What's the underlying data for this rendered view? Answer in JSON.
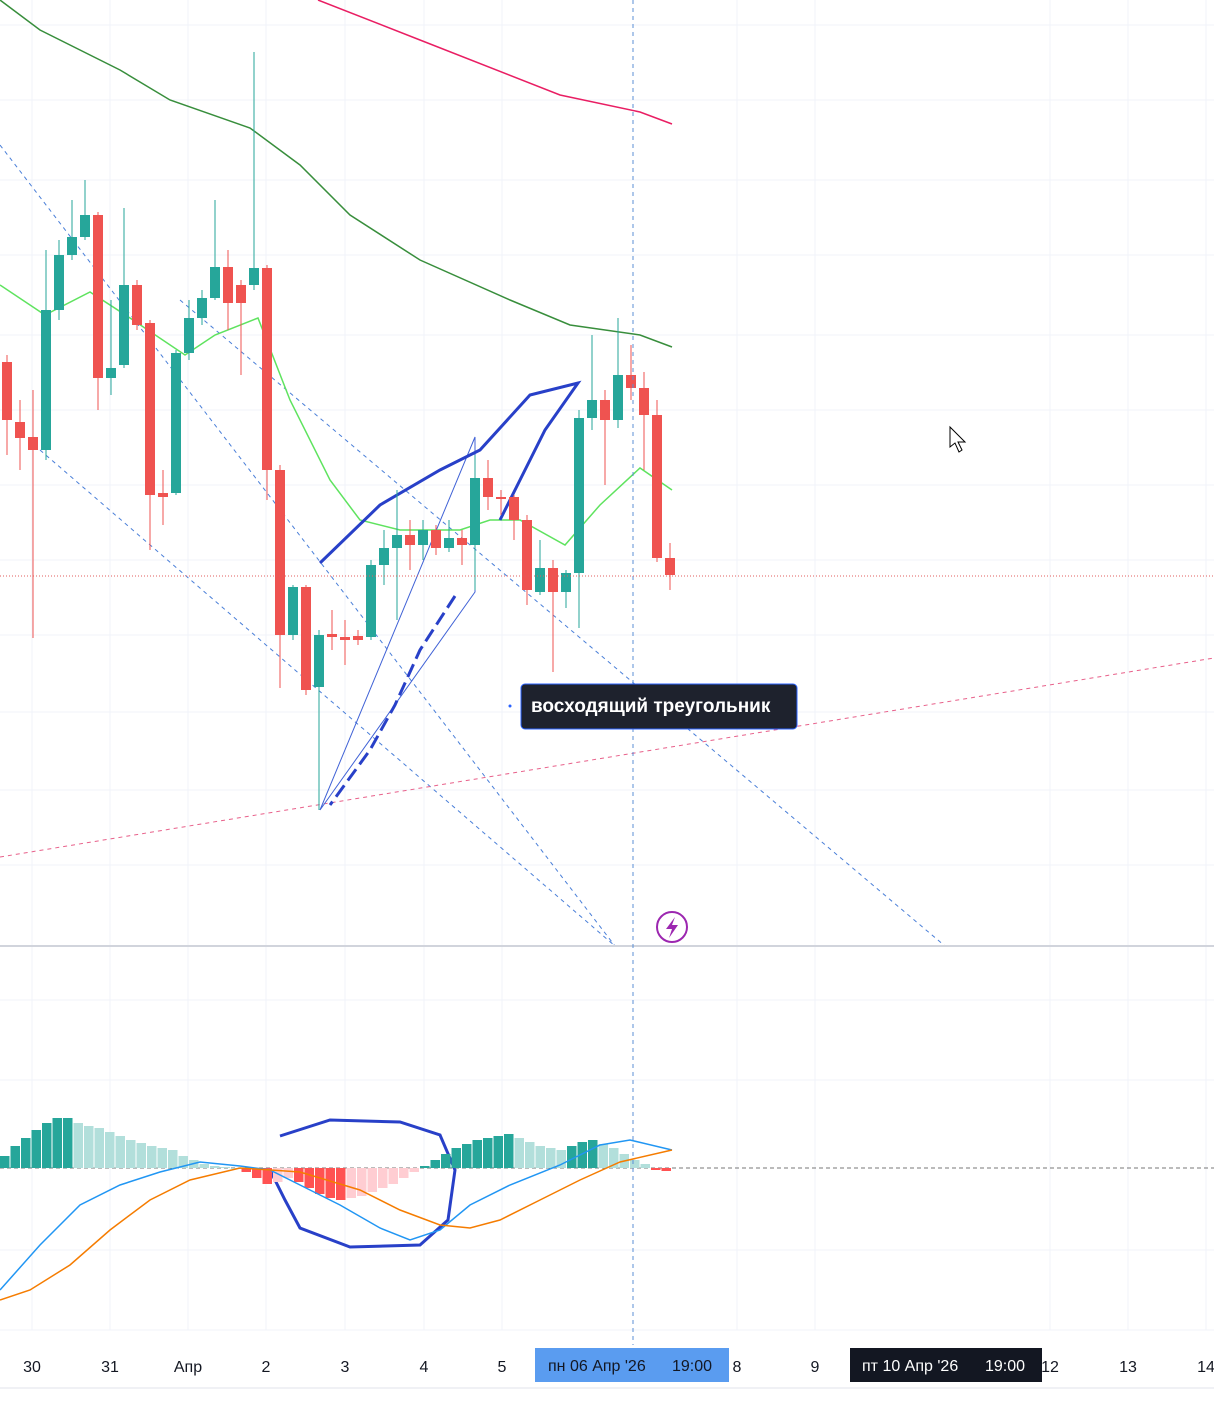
{
  "axis": {
    "labels": [
      "30",
      "31",
      "Апр",
      "2",
      "3",
      "4",
      "5",
      "8",
      "9",
      "12",
      "13",
      "14"
    ]
  },
  "crosshair": {
    "date": "пн 06 Апр '26",
    "time": "19:00"
  },
  "hover": {
    "date": "пт 10 Апр '26",
    "time": "19:00"
  },
  "annotation": {
    "text": "восходящий треугольник"
  }
}
